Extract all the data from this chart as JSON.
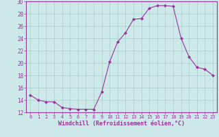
{
  "x": [
    0,
    1,
    2,
    3,
    4,
    5,
    6,
    7,
    8,
    9,
    10,
    11,
    12,
    13,
    14,
    15,
    16,
    17,
    18,
    19,
    20,
    21,
    22,
    23
  ],
  "y": [
    14.8,
    14.0,
    13.7,
    13.7,
    12.8,
    12.6,
    12.5,
    12.5,
    12.5,
    15.3,
    20.2,
    23.4,
    24.9,
    27.1,
    27.2,
    28.9,
    29.3,
    29.3,
    29.2,
    24.0,
    21.0,
    19.3,
    19.0,
    18.0
  ],
  "line_color": "#993399",
  "marker": "D",
  "marker_size": 2,
  "bg_color": "#cce8e8",
  "grid_color": "#aacccc",
  "tick_color": "#993399",
  "label_color": "#993399",
  "xlabel": "Windchill (Refroidissement éolien,°C)",
  "ylim": [
    12,
    30
  ],
  "yticks": [
    12,
    14,
    16,
    18,
    20,
    22,
    24,
    26,
    28,
    30
  ],
  "xticks": [
    0,
    1,
    2,
    3,
    4,
    5,
    6,
    7,
    8,
    9,
    10,
    11,
    12,
    13,
    14,
    15,
    16,
    17,
    18,
    19,
    20,
    21,
    22,
    23
  ]
}
